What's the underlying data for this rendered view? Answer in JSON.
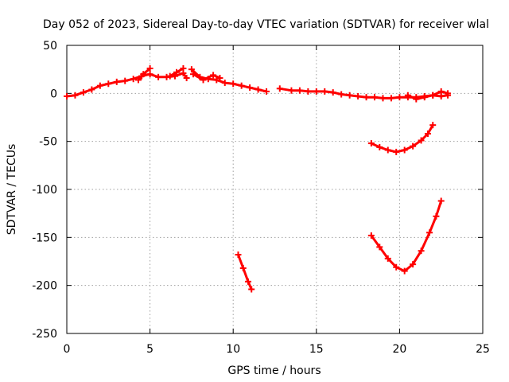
{
  "chart_data": {
    "type": "scatter",
    "title": "Day 052 of 2023, Sidereal Day-to-day VTEC variation (SDTVAR) for receiver wlal",
    "xlabel": "GPS time / hours",
    "ylabel": "SDTVAR / TECUs",
    "xlim": [
      0,
      25
    ],
    "ylim": [
      -250,
      50
    ],
    "xticks": [
      0,
      5,
      10,
      15,
      20,
      25
    ],
    "yticks": [
      50,
      0,
      -50,
      -100,
      -150,
      -200,
      -250
    ],
    "grid": true,
    "legend": "none",
    "color": "#ff0000",
    "marker": "plus",
    "series": [
      {
        "points": [
          [
            0,
            -3
          ],
          [
            0.5,
            -2
          ],
          [
            1,
            1
          ],
          [
            1.5,
            4
          ],
          [
            2,
            8
          ],
          [
            2.5,
            10
          ],
          [
            3,
            12
          ],
          [
            3.5,
            13
          ],
          [
            4,
            15
          ],
          [
            4.5,
            18
          ],
          [
            5,
            20
          ],
          [
            5.5,
            17
          ],
          [
            6,
            17
          ],
          [
            6.5,
            18
          ],
          [
            7,
            21
          ],
          [
            7.2,
            16
          ]
        ]
      },
      {
        "points": [
          [
            4.3,
            14
          ],
          [
            4.6,
            20
          ],
          [
            5,
            26
          ]
        ]
      },
      {
        "points": [
          [
            6.2,
            18
          ],
          [
            6.6,
            22
          ],
          [
            7,
            26
          ]
        ]
      },
      {
        "points": [
          [
            7.5,
            25
          ],
          [
            8,
            17
          ],
          [
            8.5,
            15
          ],
          [
            9,
            14
          ],
          [
            9.5,
            11
          ],
          [
            10,
            10
          ],
          [
            10.5,
            8
          ],
          [
            11,
            6
          ],
          [
            11.5,
            4
          ],
          [
            12,
            2
          ]
        ]
      },
      {
        "points": [
          [
            7.6,
            20
          ],
          [
            8.2,
            14
          ],
          [
            8.8,
            19
          ],
          [
            9.2,
            16
          ]
        ]
      },
      {
        "points": [
          [
            12.8,
            5
          ],
          [
            13.5,
            3
          ],
          [
            14,
            3
          ],
          [
            14.5,
            2
          ],
          [
            15,
            2
          ],
          [
            15.5,
            2
          ],
          [
            16,
            1
          ],
          [
            16.5,
            -1
          ],
          [
            17,
            -2
          ],
          [
            17.5,
            -3
          ],
          [
            18,
            -4
          ],
          [
            18.5,
            -4
          ],
          [
            19,
            -5
          ],
          [
            19.5,
            -5
          ],
          [
            20,
            -4
          ],
          [
            20.5,
            -4
          ],
          [
            21,
            -4
          ],
          [
            21.5,
            -3
          ],
          [
            22,
            -2
          ],
          [
            22.5,
            -3
          ],
          [
            22.9,
            -2
          ]
        ]
      },
      {
        "points": [
          [
            20.5,
            -2
          ],
          [
            21,
            -6
          ],
          [
            21.5,
            -4
          ],
          [
            22,
            -2
          ],
          [
            22.5,
            2
          ],
          [
            22.9,
            0
          ]
        ]
      },
      {
        "points": [
          [
            18.3,
            -52
          ],
          [
            18.8,
            -56
          ],
          [
            19.3,
            -59
          ],
          [
            19.8,
            -61
          ],
          [
            20.3,
            -59
          ],
          [
            20.8,
            -55
          ],
          [
            21.3,
            -49
          ],
          [
            21.7,
            -42
          ],
          [
            22,
            -33
          ]
        ]
      },
      {
        "points": [
          [
            10.3,
            -168
          ],
          [
            10.6,
            -182
          ],
          [
            10.9,
            -196
          ],
          [
            11.1,
            -204
          ]
        ]
      },
      {
        "points": [
          [
            18.3,
            -148
          ],
          [
            18.8,
            -160
          ],
          [
            19.3,
            -172
          ],
          [
            19.8,
            -181
          ],
          [
            20.3,
            -185
          ],
          [
            20.8,
            -178
          ],
          [
            21.3,
            -164
          ],
          [
            21.8,
            -145
          ],
          [
            22.2,
            -128
          ],
          [
            22.5,
            -112
          ]
        ]
      }
    ]
  }
}
